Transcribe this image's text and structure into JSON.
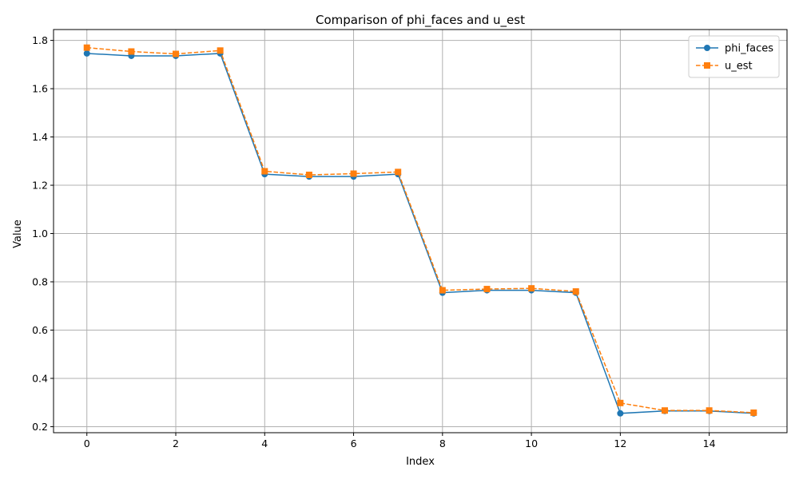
{
  "chart_data": {
    "type": "line",
    "title": "Comparison of phi_faces and u_est",
    "xlabel": "Index",
    "ylabel": "Value",
    "xlim": [
      -0.75,
      15.75
    ],
    "ylim": [
      0.175,
      1.845
    ],
    "xticks": [
      0,
      2,
      4,
      6,
      8,
      10,
      12,
      14
    ],
    "yticks": [
      0.2,
      0.4,
      0.6,
      0.8,
      1.0,
      1.2,
      1.4,
      1.6,
      1.8
    ],
    "ytick_labels": [
      "0.2",
      "0.4",
      "0.6",
      "0.8",
      "1.0",
      "1.2",
      "1.4",
      "1.6",
      "1.8"
    ],
    "grid": true,
    "legend_position": "top-right",
    "x": [
      0,
      1,
      2,
      3,
      4,
      5,
      6,
      7,
      8,
      9,
      10,
      11,
      12,
      13,
      14,
      15
    ],
    "series": [
      {
        "name": "phi_faces",
        "color": "#1f77b4",
        "marker": "circle",
        "linestyle": "solid",
        "values": [
          1.746,
          1.736,
          1.736,
          1.746,
          1.246,
          1.236,
          1.236,
          1.246,
          0.755,
          0.765,
          0.765,
          0.755,
          0.255,
          0.265,
          0.265,
          0.255
        ]
      },
      {
        "name": "u_est",
        "color": "#ff7f0e",
        "marker": "square",
        "linestyle": "dashed",
        "values": [
          1.77,
          1.754,
          1.744,
          1.758,
          1.258,
          1.243,
          1.248,
          1.255,
          0.765,
          0.77,
          0.773,
          0.76,
          0.298,
          0.267,
          0.267,
          0.258
        ]
      }
    ]
  }
}
